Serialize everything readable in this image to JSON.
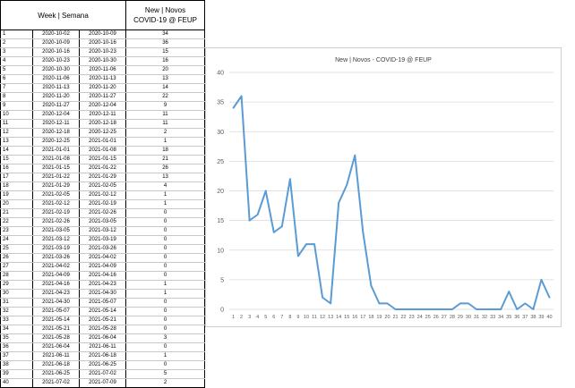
{
  "table": {
    "headers": {
      "week": "Week | Semana",
      "cases_line1": "New | Novos",
      "cases_line2": "COVID-19 @ FEUP"
    },
    "rows": [
      {
        "week": "1",
        "start": "2020-10-02",
        "end": "2020-10-09",
        "cases": "34"
      },
      {
        "week": "2",
        "start": "2020-10-09",
        "end": "2020-10-16",
        "cases": "36"
      },
      {
        "week": "3",
        "start": "2020-10-16",
        "end": "2020-10-23",
        "cases": "15"
      },
      {
        "week": "4",
        "start": "2020-10-23",
        "end": "2020-10-30",
        "cases": "16"
      },
      {
        "week": "5",
        "start": "2020-10-30",
        "end": "2020-11-06",
        "cases": "20"
      },
      {
        "week": "6",
        "start": "2020-11-06",
        "end": "2020-11-13",
        "cases": "13"
      },
      {
        "week": "7",
        "start": "2020-11-13",
        "end": "2020-11-20",
        "cases": "14"
      },
      {
        "week": "8",
        "start": "2020-11-20",
        "end": "2020-11-27",
        "cases": "22"
      },
      {
        "week": "9",
        "start": "2020-11-27",
        "end": "2020-12-04",
        "cases": "9"
      },
      {
        "week": "10",
        "start": "2020-12-04",
        "end": "2020-12-11",
        "cases": "11"
      },
      {
        "week": "11",
        "start": "2020-12-11",
        "end": "2020-12-18",
        "cases": "11"
      },
      {
        "week": "12",
        "start": "2020-12-18",
        "end": "2020-12-25",
        "cases": "2"
      },
      {
        "week": "13",
        "start": "2020-12-25",
        "end": "2021-01-01",
        "cases": "1"
      },
      {
        "week": "14",
        "start": "2021-01-01",
        "end": "2021-01-08",
        "cases": "18"
      },
      {
        "week": "15",
        "start": "2021-01-08",
        "end": "2021-01-15",
        "cases": "21"
      },
      {
        "week": "16",
        "start": "2021-01-15",
        "end": "2021-01-22",
        "cases": "26"
      },
      {
        "week": "17",
        "start": "2021-01-22",
        "end": "2021-01-29",
        "cases": "13"
      },
      {
        "week": "18",
        "start": "2021-01-29",
        "end": "2021-02-05",
        "cases": "4"
      },
      {
        "week": "19",
        "start": "2021-02-05",
        "end": "2021-02-12",
        "cases": "1"
      },
      {
        "week": "20",
        "start": "2021-02-12",
        "end": "2021-02-19",
        "cases": "1"
      },
      {
        "week": "21",
        "start": "2021-02-19",
        "end": "2021-02-26",
        "cases": "0"
      },
      {
        "week": "22",
        "start": "2021-02-26",
        "end": "2021-03-05",
        "cases": "0"
      },
      {
        "week": "23",
        "start": "2021-03-05",
        "end": "2021-03-12",
        "cases": "0"
      },
      {
        "week": "24",
        "start": "2021-03-12",
        "end": "2021-03-19",
        "cases": "0"
      },
      {
        "week": "25",
        "start": "2021-03-19",
        "end": "2021-03-26",
        "cases": "0"
      },
      {
        "week": "26",
        "start": "2021-03-26",
        "end": "2021-04-02",
        "cases": "0"
      },
      {
        "week": "27",
        "start": "2021-04-02",
        "end": "2021-04-09",
        "cases": "0"
      },
      {
        "week": "28",
        "start": "2021-04-09",
        "end": "2021-04-16",
        "cases": "0"
      },
      {
        "week": "29",
        "start": "2021-04-16",
        "end": "2021-04-23",
        "cases": "1"
      },
      {
        "week": "30",
        "start": "2021-04-23",
        "end": "2021-04-30",
        "cases": "1"
      },
      {
        "week": "31",
        "start": "2021-04-30",
        "end": "2021-05-07",
        "cases": "0"
      },
      {
        "week": "32",
        "start": "2021-05-07",
        "end": "2021-05-14",
        "cases": "0"
      },
      {
        "week": "33",
        "start": "2021-05-14",
        "end": "2021-05-21",
        "cases": "0"
      },
      {
        "week": "34",
        "start": "2021-05-21",
        "end": "2021-05-28",
        "cases": "0"
      },
      {
        "week": "35",
        "start": "2021-05-28",
        "end": "2021-06-04",
        "cases": "3"
      },
      {
        "week": "36",
        "start": "2021-06-04",
        "end": "2021-06-11",
        "cases": "0"
      },
      {
        "week": "37",
        "start": "2021-06-11",
        "end": "2021-06-18",
        "cases": "1"
      },
      {
        "week": "38",
        "start": "2021-06-18",
        "end": "2021-06-25",
        "cases": "0"
      },
      {
        "week": "39",
        "start": "2021-06-25",
        "end": "2021-07-02",
        "cases": "5"
      },
      {
        "week": "40",
        "start": "2021-07-02",
        "end": "2021-07-09",
        "cases": "2"
      }
    ]
  },
  "colors": {
    "line": "#5b9bd5",
    "grid": "#d9d9d9",
    "border": "#000000"
  },
  "chart_data": {
    "type": "line",
    "title": "New | Novos - COVID-19 @ FEUP",
    "xlabel": "",
    "ylabel": "",
    "x": [
      1,
      2,
      3,
      4,
      5,
      6,
      7,
      8,
      9,
      10,
      11,
      12,
      13,
      14,
      15,
      16,
      17,
      18,
      19,
      20,
      21,
      22,
      23,
      24,
      25,
      26,
      27,
      28,
      29,
      30,
      31,
      32,
      33,
      34,
      35,
      36,
      37,
      38,
      39,
      40
    ],
    "values": [
      34,
      36,
      15,
      16,
      20,
      13,
      14,
      22,
      9,
      11,
      11,
      2,
      1,
      18,
      21,
      26,
      13,
      4,
      1,
      1,
      0,
      0,
      0,
      0,
      0,
      0,
      0,
      0,
      1,
      1,
      0,
      0,
      0,
      0,
      3,
      0,
      1,
      0,
      5,
      2
    ],
    "ylim": [
      0,
      40
    ],
    "yticks": [
      0,
      5,
      10,
      15,
      20,
      25,
      30,
      35,
      40
    ],
    "grid": true,
    "legend": "none"
  }
}
